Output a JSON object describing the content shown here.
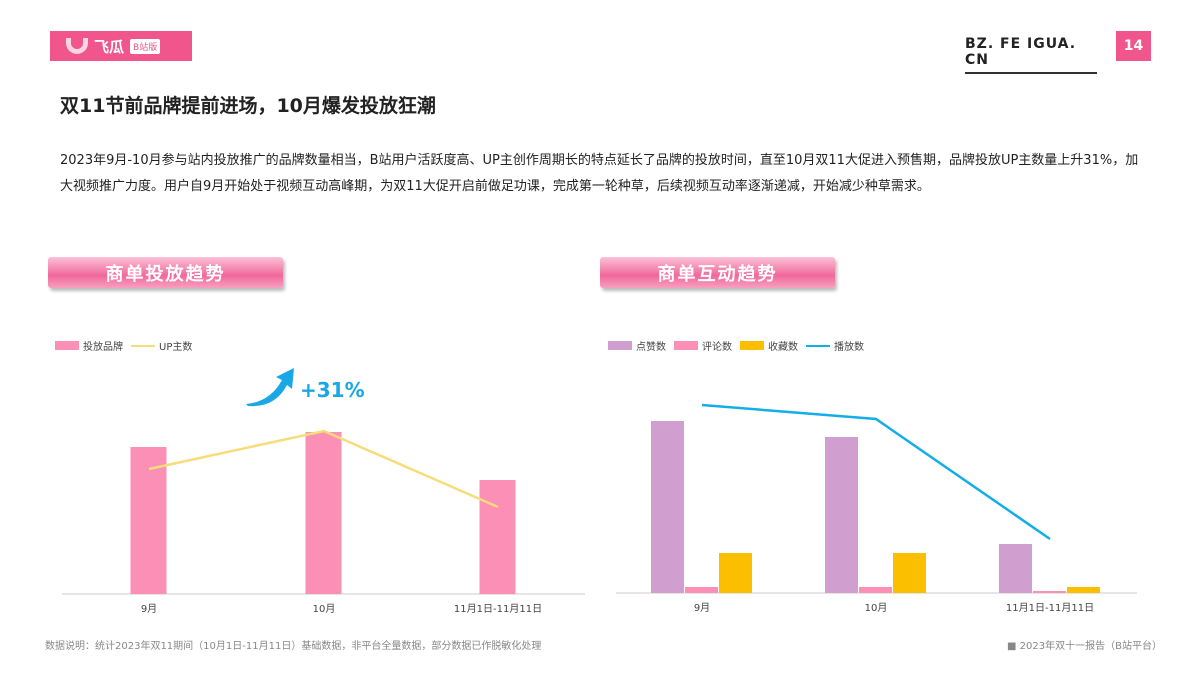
{
  "header": {
    "brand": "飞瓜",
    "brand_tag": "B站版",
    "site": "BZ. FE IGUA. CN",
    "page_number": "14"
  },
  "title": "双11节前品牌提前进场，10月爆发投放狂潮",
  "description": "2023年9月-10月参与站内投放推广的品牌数量相当，B站用户活跃度高、UP主创作周期长的特点延长了品牌的投放时间，直至10月双11大促进入预售期，品牌投放UP主数量上升31%，加大视频推广力度。用户自9月开始处于视频互动高峰期，为双11大促开启前做足功课，完成第一轮种草，后续视频互动率逐渐递减，开始减少种草需求。",
  "sections": {
    "left": "商单投放趋势",
    "right": "商单互动趋势"
  },
  "annotation": "+31%",
  "footer": {
    "note": "数据说明：统计2023年双11期间（10月1日-11月11日）基础数据，非平台全量数据，部分数据已作脱敏化处理",
    "source": "2023年双十一报告（B站平台）"
  },
  "chart_data": [
    {
      "type": "bar",
      "title": "商单投放趋势",
      "categories": [
        "9月",
        "10月",
        "11月1日-11月11日"
      ],
      "ylim": [
        0,
        200
      ],
      "series": [
        {
          "name": "投放品牌",
          "kind": "bar",
          "color": "#fb8fb5",
          "values": [
            147,
            162,
            114
          ]
        },
        {
          "name": "UP主数",
          "kind": "line",
          "color": "#f7dc7a",
          "values": [
            125,
            163,
            87
          ]
        }
      ]
    },
    {
      "type": "bar",
      "title": "商单互动趋势",
      "categories": [
        "9月",
        "10月",
        "11月1日-11月11日"
      ],
      "ylim": [
        0,
        200
      ],
      "series": [
        {
          "name": "点赞数",
          "kind": "bar",
          "color": "#d19fcf",
          "values": [
            172,
            156,
            49
          ]
        },
        {
          "name": "评论数",
          "kind": "bar",
          "color": "#fb8fb5",
          "values": [
            6,
            6,
            2
          ]
        },
        {
          "name": "收藏数",
          "kind": "bar",
          "color": "#fcbf00",
          "values": [
            40,
            40,
            6
          ]
        },
        {
          "name": "播放数",
          "kind": "line",
          "color": "#13aee8",
          "values": [
            188,
            174,
            54
          ]
        }
      ]
    }
  ]
}
